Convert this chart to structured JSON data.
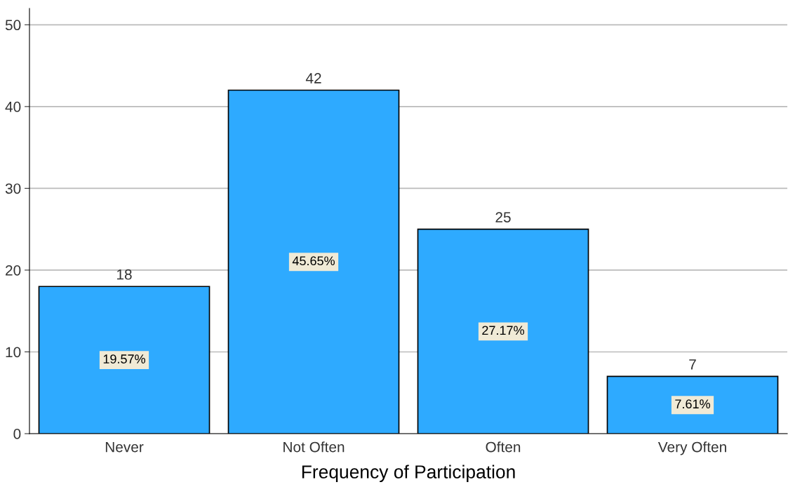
{
  "chart_data": {
    "type": "bar",
    "xlabel": "Frequency of Participation",
    "categories": [
      "Never",
      "Not Often",
      "Often",
      "Very Often"
    ],
    "values": [
      18,
      42,
      25,
      7
    ],
    "color": "#2eaaff",
    "ylim": [
      0,
      52
    ],
    "yticks": [
      0,
      10,
      20,
      30,
      40,
      50
    ],
    "grid": "y",
    "data_labels": true,
    "annotations": [
      "19.57%",
      "45.65%",
      "27.17%",
      "7.61%"
    ]
  }
}
